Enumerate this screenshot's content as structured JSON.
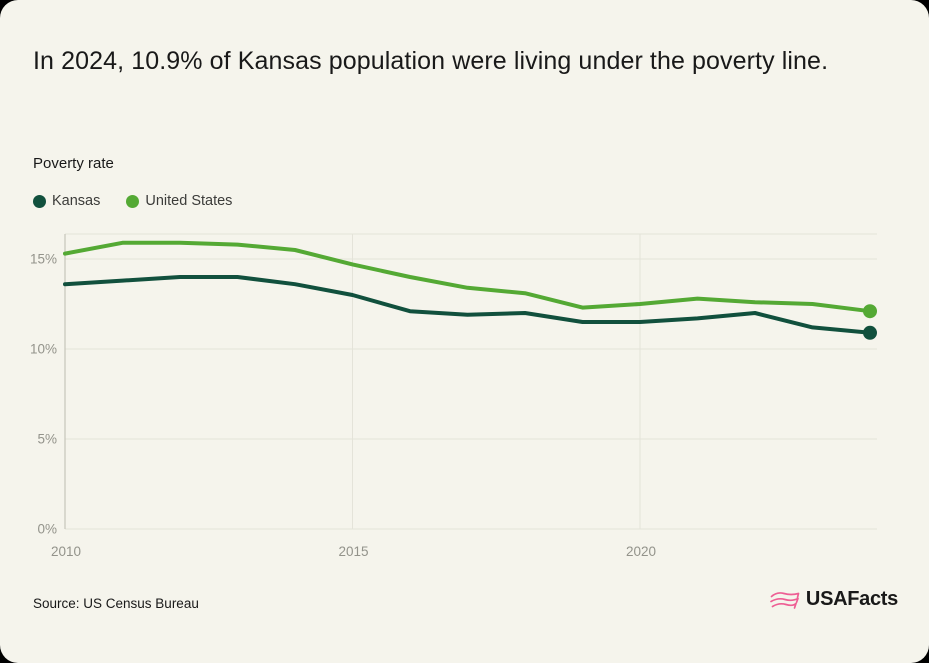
{
  "header": {
    "title": "In 2024, 10.9% of Kansas population were living under the poverty line.",
    "metric_label": "Poverty rate"
  },
  "legend": {
    "items": [
      {
        "label": "Kansas",
        "color": "#11503d"
      },
      {
        "label": "United States",
        "color": "#54a934"
      }
    ]
  },
  "chart_data": {
    "type": "line",
    "title": "Poverty rate",
    "x": [
      2010,
      2011,
      2012,
      2013,
      2014,
      2015,
      2016,
      2017,
      2018,
      2019,
      2020,
      2021,
      2022,
      2023,
      2024
    ],
    "series": [
      {
        "name": "Kansas",
        "color": "#11503d",
        "values": [
          13.6,
          13.8,
          14.0,
          14.0,
          13.6,
          13.0,
          12.1,
          11.9,
          12.0,
          11.5,
          11.5,
          11.7,
          12.0,
          11.2,
          10.9
        ]
      },
      {
        "name": "United States",
        "color": "#54a934",
        "values": [
          15.3,
          15.9,
          15.9,
          15.8,
          15.5,
          14.7,
          14.0,
          13.4,
          13.1,
          12.3,
          12.5,
          12.8,
          12.6,
          12.5,
          12.1
        ]
      }
    ],
    "ylim": [
      0,
      16.4
    ],
    "y_ticks": [
      {
        "value": 0,
        "label": "0%"
      },
      {
        "value": 5,
        "label": "5%"
      },
      {
        "value": 10,
        "label": "10%"
      },
      {
        "value": 15,
        "label": "15%"
      }
    ],
    "x_ticks": [
      {
        "value": 2010,
        "label": "2010"
      },
      {
        "value": 2015,
        "label": "2015"
      },
      {
        "value": 2020,
        "label": "2020"
      }
    ],
    "grid": true,
    "legend_position": "top-left",
    "end_point_markers": true
  },
  "footer": {
    "source": "Source: US Census Bureau",
    "logo_text": "USAFacts"
  },
  "colors": {
    "background": "#f5f4ec",
    "grid": "#e4e3d9",
    "axis": "#c6c5bb",
    "tick_text": "#93938b",
    "title_text": "#191919",
    "logo_pink": "#ee5e94"
  }
}
